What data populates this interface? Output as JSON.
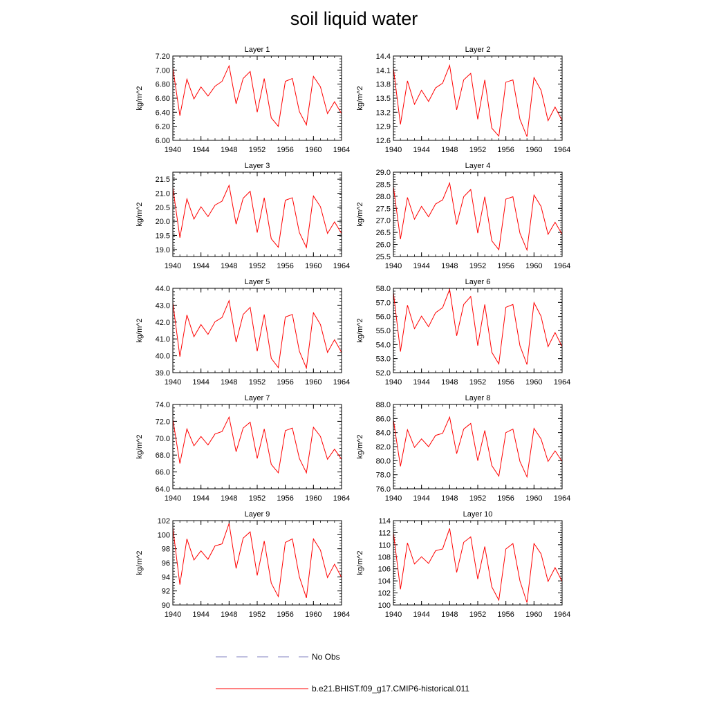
{
  "title": "soil liquid water",
  "colors": {
    "model": "#ff0000",
    "obs": "#8080c0",
    "axis": "#000000"
  },
  "legend": [
    {
      "label": "No Obs",
      "style": "dashed",
      "color": "#8080c0"
    },
    {
      "label": "b.e21.BHIST.f09_g17.CMIP6-historical.011",
      "style": "solid",
      "color": "#ff0000"
    }
  ],
  "chart_data": [
    {
      "type": "line",
      "title": "Layer 1",
      "ylabel": "kg/m^2",
      "xlim": [
        1940,
        1964
      ],
      "ylim": [
        6.0,
        7.2
      ],
      "xticks": [
        1940,
        1944,
        1948,
        1952,
        1956,
        1960,
        1964
      ],
      "xtick_labels": [
        "1940",
        "1944",
        "1948",
        "1952",
        "1956",
        "1960",
        "1964"
      ],
      "yticks": [
        6.0,
        6.2,
        6.4,
        6.6,
        6.8,
        7.0,
        7.2
      ],
      "ytick_labels": [
        "6.00",
        "6.20",
        "6.40",
        "6.60",
        "6.80",
        "7.00",
        "7.20"
      ],
      "x": [
        1940,
        1941,
        1942,
        1943,
        1944,
        1945,
        1946,
        1947,
        1948,
        1949,
        1950,
        1951,
        1952,
        1953,
        1954,
        1955,
        1956,
        1957,
        1958,
        1959,
        1960,
        1961,
        1962,
        1963,
        1964
      ],
      "series": [
        {
          "values": [
            7.03,
            6.35,
            6.87,
            6.59,
            6.76,
            6.63,
            6.77,
            6.84,
            7.06,
            6.52,
            6.88,
            6.98,
            6.4,
            6.88,
            6.32,
            6.2,
            6.84,
            6.88,
            6.41,
            6.22,
            6.91,
            6.76,
            6.38,
            6.55,
            6.38
          ]
        }
      ]
    },
    {
      "type": "line",
      "title": "Layer 2",
      "ylabel": "kg/m^2",
      "xlim": [
        1940,
        1964
      ],
      "ylim": [
        12.6,
        14.4
      ],
      "xticks": [
        1940,
        1944,
        1948,
        1952,
        1956,
        1960,
        1964
      ],
      "xtick_labels": [
        "1940",
        "1944",
        "1948",
        "1952",
        "1956",
        "1960",
        "1964"
      ],
      "yticks": [
        12.6,
        12.9,
        13.2,
        13.5,
        13.8,
        14.1,
        14.4
      ],
      "ytick_labels": [
        "12.6",
        "12.9",
        "13.2",
        "13.5",
        "13.8",
        "14.1",
        "14.4"
      ],
      "x": [
        1940,
        1941,
        1942,
        1943,
        1944,
        1945,
        1946,
        1947,
        1948,
        1949,
        1950,
        1951,
        1952,
        1953,
        1954,
        1955,
        1956,
        1957,
        1958,
        1959,
        1960,
        1961,
        1962,
        1963,
        1964
      ],
      "series": [
        {
          "values": [
            14.14,
            12.94,
            13.87,
            13.37,
            13.67,
            13.43,
            13.72,
            13.82,
            14.2,
            13.25,
            13.89,
            14.03,
            13.05,
            13.89,
            12.86,
            12.69,
            13.84,
            13.89,
            13.05,
            12.68,
            13.94,
            13.67,
            13.02,
            13.31,
            13.02
          ]
        }
      ]
    },
    {
      "type": "line",
      "title": "Layer 3",
      "ylabel": "kg/m^2",
      "xlim": [
        1940,
        1964
      ],
      "ylim": [
        18.75,
        21.75
      ],
      "xticks": [
        1940,
        1944,
        1948,
        1952,
        1956,
        1960,
        1964
      ],
      "xtick_labels": [
        "1940",
        "1944",
        "1948",
        "1952",
        "1956",
        "1960",
        "1964"
      ],
      "yticks": [
        19.0,
        19.5,
        20.0,
        20.5,
        21.0,
        21.5
      ],
      "ytick_labels": [
        "19.0",
        "19.5",
        "20.0",
        "20.5",
        "21.0",
        "21.5"
      ],
      "x": [
        1940,
        1941,
        1942,
        1943,
        1944,
        1945,
        1946,
        1947,
        1948,
        1949,
        1950,
        1951,
        1952,
        1953,
        1954,
        1955,
        1956,
        1957,
        1958,
        1959,
        1960,
        1961,
        1962,
        1963,
        1964
      ],
      "series": [
        {
          "values": [
            21.2,
            19.42,
            20.8,
            20.08,
            20.52,
            20.17,
            20.58,
            20.72,
            21.28,
            19.9,
            20.82,
            21.07,
            19.6,
            20.84,
            19.38,
            19.08,
            20.75,
            20.84,
            19.6,
            19.07,
            20.9,
            20.52,
            19.57,
            19.98,
            19.57
          ]
        }
      ]
    },
    {
      "type": "line",
      "title": "Layer 4",
      "ylabel": "kg/m^2",
      "xlim": [
        1940,
        1964
      ],
      "ylim": [
        25.5,
        29.0
      ],
      "xticks": [
        1940,
        1944,
        1948,
        1952,
        1956,
        1960,
        1964
      ],
      "xtick_labels": [
        "1940",
        "1944",
        "1948",
        "1952",
        "1956",
        "1960",
        "1964"
      ],
      "yticks": [
        25.5,
        26.0,
        26.5,
        27.0,
        27.5,
        28.0,
        28.5,
        29.0
      ],
      "ytick_labels": [
        "25.5",
        "26.0",
        "26.5",
        "27.0",
        "27.5",
        "28.0",
        "28.5",
        "29.0"
      ],
      "x": [
        1940,
        1941,
        1942,
        1943,
        1944,
        1945,
        1946,
        1947,
        1948,
        1949,
        1950,
        1951,
        1952,
        1953,
        1954,
        1955,
        1956,
        1957,
        1958,
        1959,
        1960,
        1961,
        1962,
        1963,
        1964
      ],
      "series": [
        {
          "values": [
            28.4,
            26.22,
            27.95,
            27.05,
            27.58,
            27.15,
            27.68,
            27.85,
            28.55,
            26.83,
            27.98,
            28.28,
            26.47,
            27.98,
            26.15,
            25.78,
            27.88,
            27.98,
            26.47,
            25.77,
            28.05,
            27.58,
            26.42,
            26.92,
            26.42
          ]
        }
      ]
    },
    {
      "type": "line",
      "title": "Layer 5",
      "ylabel": "kg/m^2",
      "xlim": [
        1940,
        1964
      ],
      "ylim": [
        39.0,
        44.0
      ],
      "xticks": [
        1940,
        1944,
        1948,
        1952,
        1956,
        1960,
        1964
      ],
      "xtick_labels": [
        "1940",
        "1944",
        "1948",
        "1952",
        "1956",
        "1960",
        "1964"
      ],
      "yticks": [
        39.0,
        40.0,
        41.0,
        42.0,
        43.0,
        44.0
      ],
      "ytick_labels": [
        "39.0",
        "40.0",
        "41.0",
        "42.0",
        "43.0",
        "44.0"
      ],
      "x": [
        1940,
        1941,
        1942,
        1943,
        1944,
        1945,
        1946,
        1947,
        1948,
        1949,
        1950,
        1951,
        1952,
        1953,
        1954,
        1955,
        1956,
        1957,
        1958,
        1959,
        1960,
        1961,
        1962,
        1963,
        1964
      ],
      "series": [
        {
          "values": [
            43.15,
            39.95,
            42.42,
            41.13,
            41.85,
            41.27,
            42.02,
            42.27,
            43.27,
            40.81,
            42.45,
            42.87,
            40.27,
            42.45,
            39.85,
            39.3,
            42.3,
            42.45,
            40.27,
            39.27,
            42.55,
            41.85,
            40.2,
            40.95,
            40.2
          ]
        }
      ]
    },
    {
      "type": "line",
      "title": "Layer 6",
      "ylabel": "kg/m^2",
      "xlim": [
        1940,
        1964
      ],
      "ylim": [
        52.0,
        58.0
      ],
      "xticks": [
        1940,
        1944,
        1948,
        1952,
        1956,
        1960,
        1964
      ],
      "xtick_labels": [
        "1940",
        "1944",
        "1948",
        "1952",
        "1956",
        "1960",
        "1964"
      ],
      "yticks": [
        52.0,
        53.0,
        54.0,
        55.0,
        56.0,
        57.0,
        58.0
      ],
      "ytick_labels": [
        "52.0",
        "53.0",
        "54.0",
        "55.0",
        "56.0",
        "57.0",
        "58.0"
      ],
      "x": [
        1940,
        1941,
        1942,
        1943,
        1944,
        1945,
        1946,
        1947,
        1948,
        1949,
        1950,
        1951,
        1952,
        1953,
        1954,
        1955,
        1956,
        1957,
        1958,
        1959,
        1960,
        1961,
        1962,
        1963,
        1964
      ],
      "series": [
        {
          "values": [
            57.7,
            53.5,
            56.8,
            55.13,
            56.02,
            55.27,
            56.27,
            56.62,
            57.92,
            54.62,
            56.85,
            57.42,
            53.92,
            56.85,
            53.45,
            52.62,
            56.65,
            56.85,
            53.92,
            52.58,
            56.98,
            56.02,
            53.85,
            54.85,
            53.85
          ]
        }
      ]
    },
    {
      "type": "line",
      "title": "Layer 7",
      "ylabel": "kg/m^2",
      "xlim": [
        1940,
        1964
      ],
      "ylim": [
        64.0,
        74.0
      ],
      "xticks": [
        1940,
        1944,
        1948,
        1952,
        1956,
        1960,
        1964
      ],
      "xtick_labels": [
        "1940",
        "1944",
        "1948",
        "1952",
        "1956",
        "1960",
        "1964"
      ],
      "yticks": [
        64.0,
        66.0,
        68.0,
        70.0,
        72.0,
        74.0
      ],
      "ytick_labels": [
        "64.0",
        "66.0",
        "68.0",
        "70.0",
        "72.0",
        "74.0"
      ],
      "x": [
        1940,
        1941,
        1942,
        1943,
        1944,
        1945,
        1946,
        1947,
        1948,
        1949,
        1950,
        1951,
        1952,
        1953,
        1954,
        1955,
        1956,
        1957,
        1958,
        1959,
        1960,
        1961,
        1962,
        1963,
        1964
      ],
      "series": [
        {
          "values": [
            72.25,
            67.0,
            71.1,
            69.1,
            70.2,
            69.2,
            70.5,
            70.8,
            72.5,
            68.4,
            71.2,
            71.9,
            67.6,
            71.1,
            66.9,
            65.9,
            70.9,
            71.2,
            67.6,
            65.9,
            71.3,
            70.2,
            67.5,
            68.7,
            67.5
          ]
        }
      ]
    },
    {
      "type": "line",
      "title": "Layer 8",
      "ylabel": "kg/m^2",
      "xlim": [
        1940,
        1964
      ],
      "ylim": [
        76.0,
        88.0
      ],
      "xticks": [
        1940,
        1944,
        1948,
        1952,
        1956,
        1960,
        1964
      ],
      "xtick_labels": [
        "1940",
        "1944",
        "1948",
        "1952",
        "1956",
        "1960",
        "1964"
      ],
      "yticks": [
        76.0,
        78.0,
        80.0,
        82.0,
        84.0,
        86.0,
        88.0
      ],
      "ytick_labels": [
        "76.0",
        "78.0",
        "80.0",
        "82.0",
        "84.0",
        "86.0",
        "88.0"
      ],
      "x": [
        1940,
        1941,
        1942,
        1943,
        1944,
        1945,
        1946,
        1947,
        1948,
        1949,
        1950,
        1951,
        1952,
        1953,
        1954,
        1955,
        1956,
        1957,
        1958,
        1959,
        1960,
        1961,
        1962,
        1963,
        1964
      ],
      "series": [
        {
          "values": [
            85.8,
            79.2,
            84.4,
            81.9,
            83.1,
            82.0,
            83.6,
            83.9,
            86.2,
            81.0,
            84.5,
            85.3,
            80.0,
            84.3,
            79.3,
            77.8,
            84.0,
            84.5,
            79.9,
            77.7,
            84.6,
            83.1,
            79.9,
            81.4,
            79.9
          ]
        }
      ]
    },
    {
      "type": "line",
      "title": "Layer 9",
      "ylabel": "kg/m^2",
      "xlim": [
        1940,
        1964
      ],
      "ylim": [
        90,
        102
      ],
      "xticks": [
        1940,
        1944,
        1948,
        1952,
        1956,
        1960,
        1964
      ],
      "xtick_labels": [
        "1940",
        "1944",
        "1948",
        "1952",
        "1956",
        "1960",
        "1964"
      ],
      "yticks": [
        90,
        92,
        94,
        96,
        98,
        100,
        102
      ],
      "ytick_labels": [
        "90",
        "92",
        "94",
        "96",
        "98",
        "100",
        "102"
      ],
      "x": [
        1940,
        1941,
        1942,
        1943,
        1944,
        1945,
        1946,
        1947,
        1948,
        1949,
        1950,
        1951,
        1952,
        1953,
        1954,
        1955,
        1956,
        1957,
        1958,
        1959,
        1960,
        1961,
        1962,
        1963,
        1964
      ],
      "series": [
        {
          "values": [
            101.0,
            92.9,
            99.4,
            96.4,
            97.7,
            96.5,
            98.4,
            98.7,
            101.6,
            95.2,
            99.5,
            100.4,
            94.2,
            99.1,
            93.1,
            91.2,
            98.9,
            99.4,
            94.0,
            91.0,
            99.4,
            97.8,
            93.9,
            95.8,
            93.9
          ]
        }
      ]
    },
    {
      "type": "line",
      "title": "Layer 10",
      "ylabel": "kg/m^2",
      "xlim": [
        1940,
        1964
      ],
      "ylim": [
        100,
        114
      ],
      "xticks": [
        1940,
        1944,
        1948,
        1952,
        1956,
        1960,
        1964
      ],
      "xtick_labels": [
        "1940",
        "1944",
        "1948",
        "1952",
        "1956",
        "1960",
        "1964"
      ],
      "yticks": [
        100,
        102,
        104,
        106,
        108,
        110,
        112,
        114
      ],
      "ytick_labels": [
        "100",
        "102",
        "104",
        "106",
        "108",
        "110",
        "112",
        "114"
      ],
      "x": [
        1940,
        1941,
        1942,
        1943,
        1944,
        1945,
        1946,
        1947,
        1948,
        1949,
        1950,
        1951,
        1952,
        1953,
        1954,
        1955,
        1956,
        1957,
        1958,
        1959,
        1960,
        1961,
        1962,
        1963,
        1964
      ],
      "series": [
        {
          "values": [
            112.0,
            102.6,
            110.3,
            106.8,
            108.0,
            106.9,
            109.0,
            109.3,
            112.7,
            105.4,
            110.4,
            111.3,
            104.3,
            109.7,
            103.0,
            100.8,
            109.3,
            110.2,
            104.0,
            100.4,
            110.2,
            108.5,
            103.9,
            106.2,
            103.9
          ]
        }
      ]
    }
  ]
}
